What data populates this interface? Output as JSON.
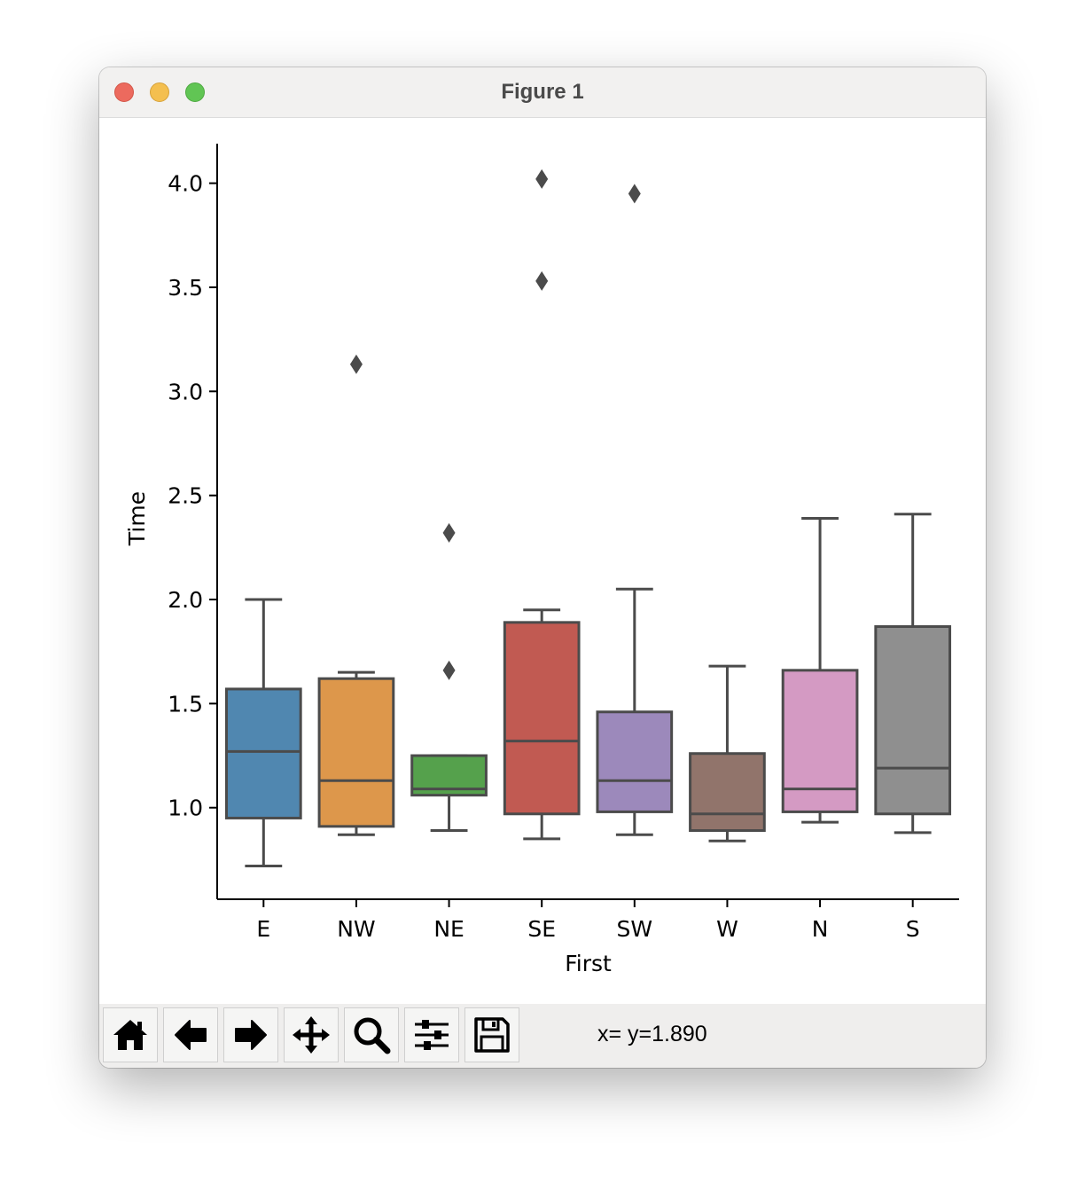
{
  "window": {
    "title": "Figure 1"
  },
  "toolbar": {
    "buttons": [
      {
        "id": "home",
        "icon": "home-icon"
      },
      {
        "id": "back",
        "icon": "arrow-left-icon"
      },
      {
        "id": "forward",
        "icon": "arrow-right-icon"
      },
      {
        "id": "pan",
        "icon": "move-icon"
      },
      {
        "id": "zoom",
        "icon": "magnifier-icon"
      },
      {
        "id": "configure",
        "icon": "sliders-icon"
      },
      {
        "id": "save",
        "icon": "floppy-disk-icon"
      }
    ],
    "coords_text": "x= y=1.890"
  },
  "chart_data": {
    "type": "box",
    "xlabel": "First",
    "ylabel": "Time",
    "ylim": [
      0.56,
      4.19
    ],
    "yticks": [
      1.0,
      1.5,
      2.0,
      2.5,
      3.0,
      3.5,
      4.0
    ],
    "ytick_labels": [
      "1.0",
      "1.5",
      "2.0",
      "2.5",
      "3.0",
      "3.5",
      "4.0"
    ],
    "grid": false,
    "categories": [
      "E",
      "NW",
      "NE",
      "SE",
      "SW",
      "W",
      "N",
      "S"
    ],
    "colors": [
      "#5087b0",
      "#dd974b",
      "#55a14c",
      "#c15a52",
      "#9c89bb",
      "#91746b",
      "#d49ac3",
      "#8f8f8f"
    ],
    "boxes": [
      {
        "name": "E",
        "whislo": 0.72,
        "q1": 0.95,
        "med": 1.27,
        "q3": 1.57,
        "whishi": 2.0,
        "fliers": []
      },
      {
        "name": "NW",
        "whislo": 0.87,
        "q1": 0.91,
        "med": 1.13,
        "q3": 1.62,
        "whishi": 1.65,
        "fliers": [
          3.13
        ]
      },
      {
        "name": "NE",
        "whislo": 0.89,
        "q1": 1.06,
        "med": 1.09,
        "q3": 1.25,
        "whishi": 1.25,
        "fliers": [
          1.66,
          2.32
        ]
      },
      {
        "name": "SE",
        "whislo": 0.85,
        "q1": 0.97,
        "med": 1.32,
        "q3": 1.89,
        "whishi": 1.95,
        "fliers": [
          3.53,
          4.02
        ]
      },
      {
        "name": "SW",
        "whislo": 0.87,
        "q1": 0.98,
        "med": 1.13,
        "q3": 1.46,
        "whishi": 2.05,
        "fliers": [
          3.95
        ]
      },
      {
        "name": "W",
        "whislo": 0.84,
        "q1": 0.89,
        "med": 0.97,
        "q3": 1.26,
        "whishi": 1.68,
        "fliers": []
      },
      {
        "name": "N",
        "whislo": 0.93,
        "q1": 0.98,
        "med": 1.09,
        "q3": 1.66,
        "whishi": 2.39,
        "fliers": []
      },
      {
        "name": "S",
        "whislo": 0.88,
        "q1": 0.97,
        "med": 1.19,
        "q3": 1.87,
        "whishi": 2.41,
        "fliers": []
      }
    ]
  }
}
